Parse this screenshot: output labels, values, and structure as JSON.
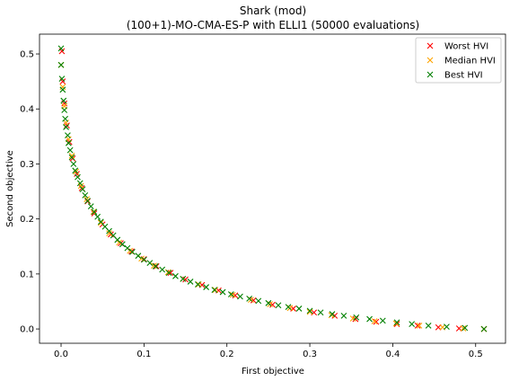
{
  "chart_data": {
    "type": "scatter",
    "title": "Shark (mod)",
    "subtitle": "(100+1)-MO-CMA-ES-P with ELLI1 (50000 evaluations)",
    "xlabel": "First objective",
    "ylabel": "Second objective",
    "xlim": [
      -0.026,
      0.536
    ],
    "ylim": [
      -0.026,
      0.536
    ],
    "xticks": [
      "0.0",
      "0.1",
      "0.2",
      "0.3",
      "0.4",
      "0.5"
    ],
    "yticks": [
      "0.0",
      "0.1",
      "0.2",
      "0.3",
      "0.4",
      "0.5"
    ],
    "legend_position": "top-right",
    "grid": false,
    "marker": "x",
    "series": [
      {
        "name": "Worst HVI",
        "color": "#ff0000",
        "x": [
          0.001,
          0.002,
          0.004,
          0.007,
          0.01,
          0.014,
          0.019,
          0.025,
          0.032,
          0.04,
          0.05,
          0.06,
          0.072,
          0.085,
          0.1,
          0.115,
          0.132,
          0.15,
          0.17,
          0.19,
          0.21,
          0.232,
          0.255,
          0.28,
          0.305,
          0.33,
          0.355,
          0.38,
          0.405,
          0.43,
          0.455,
          0.48,
          0.51
        ],
        "y": [
          0.505,
          0.45,
          0.41,
          0.37,
          0.34,
          0.31,
          0.282,
          0.256,
          0.232,
          0.21,
          0.19,
          0.172,
          0.156,
          0.141,
          0.127,
          0.114,
          0.102,
          0.09,
          0.08,
          0.07,
          0.061,
          0.052,
          0.044,
          0.037,
          0.03,
          0.024,
          0.018,
          0.013,
          0.009,
          0.006,
          0.003,
          0.001,
          0.0
        ]
      },
      {
        "name": "Median HVI",
        "color": "#ffa500",
        "x": [
          0.0,
          0.002,
          0.004,
          0.006,
          0.009,
          0.013,
          0.018,
          0.024,
          0.031,
          0.039,
          0.048,
          0.058,
          0.07,
          0.083,
          0.097,
          0.112,
          0.129,
          0.147,
          0.166,
          0.186,
          0.207,
          0.229,
          0.252,
          0.276,
          0.3,
          0.326,
          0.352,
          0.378,
          0.404,
          0.432,
          0.46,
          0.485,
          0.51
        ],
        "y": [
          0.48,
          0.44,
          0.405,
          0.375,
          0.345,
          0.315,
          0.286,
          0.26,
          0.236,
          0.213,
          0.193,
          0.174,
          0.157,
          0.142,
          0.128,
          0.115,
          0.103,
          0.091,
          0.081,
          0.071,
          0.062,
          0.053,
          0.045,
          0.038,
          0.031,
          0.025,
          0.019,
          0.014,
          0.01,
          0.006,
          0.003,
          0.001,
          0.0
        ]
      },
      {
        "name": "Best HVI",
        "color": "#008000",
        "x": [
          0.0,
          0.0,
          0.001,
          0.002,
          0.003,
          0.004,
          0.005,
          0.006,
          0.008,
          0.009,
          0.011,
          0.013,
          0.015,
          0.017,
          0.02,
          0.023,
          0.026,
          0.029,
          0.032,
          0.036,
          0.04,
          0.044,
          0.048,
          0.053,
          0.058,
          0.063,
          0.068,
          0.074,
          0.08,
          0.086,
          0.093,
          0.1,
          0.107,
          0.114,
          0.122,
          0.13,
          0.138,
          0.147,
          0.156,
          0.165,
          0.175,
          0.185,
          0.195,
          0.205,
          0.216,
          0.227,
          0.238,
          0.25,
          0.262,
          0.274,
          0.287,
          0.3,
          0.313,
          0.327,
          0.341,
          0.356,
          0.372,
          0.388,
          0.405,
          0.423,
          0.443,
          0.465,
          0.487,
          0.51
        ],
        "y": [
          0.51,
          0.48,
          0.455,
          0.435,
          0.415,
          0.398,
          0.382,
          0.367,
          0.352,
          0.338,
          0.325,
          0.312,
          0.3,
          0.288,
          0.276,
          0.265,
          0.254,
          0.243,
          0.233,
          0.223,
          0.213,
          0.204,
          0.195,
          0.186,
          0.178,
          0.17,
          0.162,
          0.154,
          0.147,
          0.14,
          0.133,
          0.126,
          0.12,
          0.114,
          0.108,
          0.102,
          0.096,
          0.091,
          0.086,
          0.081,
          0.076,
          0.071,
          0.067,
          0.063,
          0.059,
          0.055,
          0.051,
          0.047,
          0.043,
          0.04,
          0.037,
          0.033,
          0.03,
          0.027,
          0.024,
          0.021,
          0.018,
          0.015,
          0.012,
          0.009,
          0.006,
          0.004,
          0.002,
          0.0
        ]
      }
    ]
  }
}
